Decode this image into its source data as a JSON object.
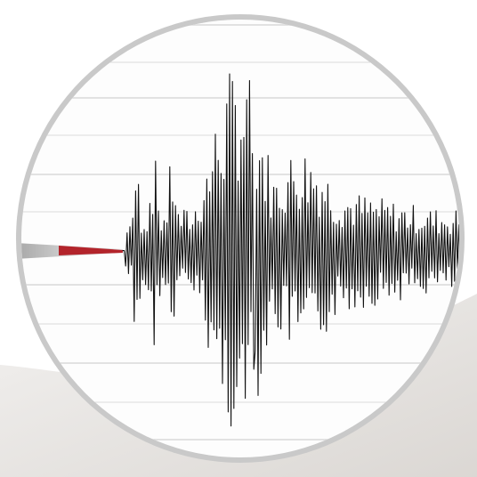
{
  "image": {
    "subject": "seismograph-trace",
    "colors": {
      "background": "#ffffff",
      "paper": "#fdfdfd",
      "ring": "#c8c8c8",
      "grid_line": "#d9d9d9",
      "trace": "#111111",
      "stylus": "#b8b8b8",
      "stylus_tip": "#b3242b",
      "shadow": "#d8d4d0"
    }
  }
}
